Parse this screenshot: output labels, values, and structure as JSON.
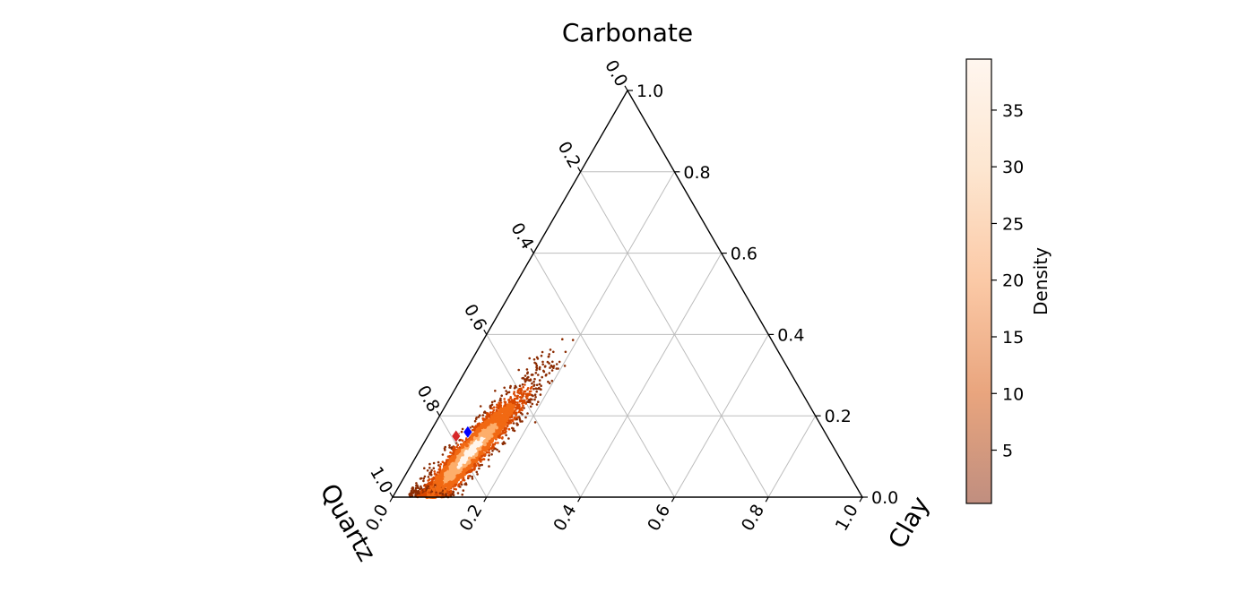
{
  "chart_data": {
    "type": "scatter",
    "subtype": "ternary-density",
    "axes": {
      "top": {
        "label": "Carbonate"
      },
      "right": {
        "label": "Clay"
      },
      "left": {
        "label": "Quartz"
      }
    },
    "ticks": [
      "0.0",
      "0.2",
      "0.4",
      "0.6",
      "0.8",
      "1.0"
    ],
    "tick_values": [
      0.0,
      0.2,
      0.4,
      0.6,
      0.8,
      1.0
    ],
    "grid": true,
    "colorbar": {
      "label": "Density",
      "ticks": [
        "5",
        "10",
        "15",
        "20",
        "25",
        "30",
        "35"
      ],
      "tick_values": [
        5,
        10,
        15,
        20,
        25,
        30,
        35
      ],
      "range": [
        0.3,
        39.5
      ],
      "colors": [
        "#c08e7f",
        "#e9a57e",
        "#fbc9a6",
        "#fde6d0",
        "#fff6ef"
      ],
      "placement": "right"
    },
    "cloud": {
      "note_units": "fractions: quartz, carbonate, clay",
      "center": {
        "quartz": 0.78,
        "carbonate": 0.11,
        "clay": 0.11
      },
      "extent": {
        "carbonate_min": 0.0,
        "carbonate_max": 0.45,
        "clay_min": 0.04,
        "clay_max": 0.21
      },
      "colors": [
        "#8c2d04",
        "#d94801",
        "#f16913",
        "#fdae6b",
        "#fff5eb"
      ]
    },
    "markers": [
      {
        "shape": "diamond",
        "color": "#d62728",
        "quartz": 0.79,
        "carbonate": 0.15,
        "clay": 0.06
      },
      {
        "shape": "diamond",
        "color": "#0000ff",
        "quartz": 0.76,
        "carbonate": 0.16,
        "clay": 0.08
      }
    ]
  }
}
